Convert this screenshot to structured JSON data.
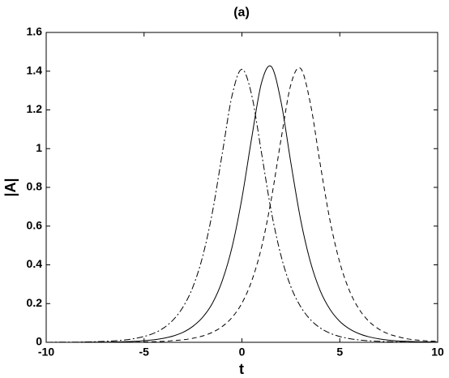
{
  "chart_data": {
    "type": "line",
    "title": "(a)",
    "x_label": "t",
    "y_label": "|A|",
    "x": [
      -10,
      -9.5,
      -9,
      -8.5,
      -8,
      -7.5,
      -7,
      -6.5,
      -6,
      -5.5,
      -5,
      -4.5,
      -4,
      -3.5,
      -3,
      -2.5,
      -2,
      -1.5,
      -1,
      -0.5,
      0,
      0.5,
      1,
      1.5,
      2,
      2.5,
      3,
      3.5,
      4,
      4.5,
      5,
      5.5,
      6,
      6.5,
      7,
      7.5,
      8,
      8.5,
      9,
      9.5,
      10
    ],
    "series": [
      {
        "color": "#000000",
        "dash": "solid",
        "values": [
          0,
          0,
          0,
          0,
          0.001,
          0.001,
          0.001,
          0.002,
          0.003,
          0.005,
          0.009,
          0.013,
          0.021,
          0.033,
          0.052,
          0.083,
          0.13,
          0.203,
          0.319,
          0.493,
          0.744,
          1.056,
          1.34,
          1.424,
          1.241,
          0.927,
          0.633,
          0.415,
          0.266,
          0.17,
          0.108,
          0.069,
          0.044,
          0.028,
          0.018,
          0.011,
          0.007,
          0.005,
          0.003,
          0.002,
          0.001
        ]
      },
      {
        "color": "#000000",
        "dash": "dashed",
        "values": [
          0,
          0,
          0,
          0,
          0,
          0,
          0,
          0.001,
          0.001,
          0.001,
          0.002,
          0.003,
          0.005,
          0.009,
          0.013,
          0.021,
          0.033,
          0.052,
          0.082,
          0.129,
          0.202,
          0.317,
          0.49,
          0.739,
          1.049,
          1.331,
          1.414,
          1.232,
          0.92,
          0.629,
          0.412,
          0.265,
          0.169,
          0.107,
          0.068,
          0.043,
          0.028,
          0.017,
          0.011,
          0.007,
          0.005
        ]
      },
      {
        "color": "#000000",
        "dash": "dashdot",
        "values": [
          0,
          0.001,
          0.001,
          0.001,
          0.002,
          0.003,
          0.005,
          0.008,
          0.012,
          0.019,
          0.03,
          0.047,
          0.074,
          0.117,
          0.184,
          0.287,
          0.446,
          0.676,
          0.978,
          1.276,
          1.41,
          1.276,
          0.978,
          0.676,
          0.446,
          0.287,
          0.184,
          0.117,
          0.074,
          0.047,
          0.03,
          0.019,
          0.012,
          0.008,
          0.005,
          0.003,
          0.002,
          0.001,
          0.001,
          0.001,
          0
        ]
      }
    ],
    "xlim": [
      -10,
      10
    ],
    "xticks": [
      -10,
      -5,
      0,
      5,
      10
    ],
    "ylim": [
      0,
      1.6
    ],
    "yticks": [
      0,
      0.2,
      0.4,
      0.6,
      0.8,
      1,
      1.2,
      1.4,
      1.6
    ],
    "grid": false
  }
}
